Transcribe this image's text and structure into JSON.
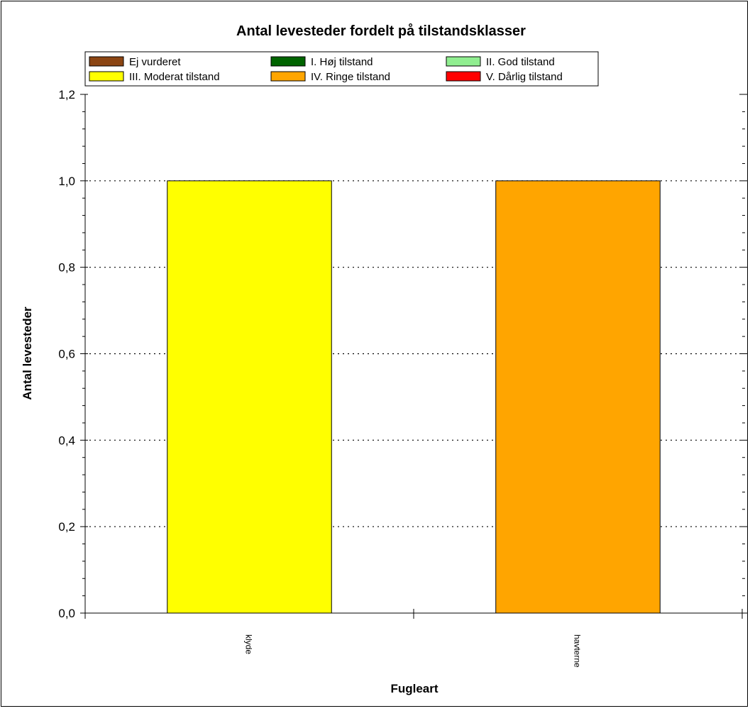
{
  "chart_data": {
    "type": "bar",
    "title": "Antal levesteder fordelt på tilstandsklasser",
    "xlabel": "Fugleart",
    "ylabel": "Antal levesteder",
    "categories": [
      "klyde",
      "havterne"
    ],
    "values": [
      1.0,
      1.0
    ],
    "bar_colors": [
      "#FFFF00",
      "#FFA500"
    ],
    "series": [
      {
        "name": "Ej vurderet",
        "color": "#8B4513",
        "values": [
          0,
          0
        ]
      },
      {
        "name": "I. Høj tilstand",
        "color": "#006400",
        "values": [
          0,
          0
        ]
      },
      {
        "name": "II. God tilstand",
        "color": "#90EE90",
        "values": [
          0,
          0
        ]
      },
      {
        "name": "III. Moderat tilstand",
        "color": "#FFFF00",
        "values": [
          1,
          0
        ]
      },
      {
        "name": "IV. Ringe tilstand",
        "color": "#FFA500",
        "values": [
          0,
          1
        ]
      },
      {
        "name": "V. Dårlig tilstand",
        "color": "#FF0000",
        "values": [
          0,
          0
        ]
      }
    ],
    "ylim": [
      0,
      1.2
    ],
    "yticks": [
      0,
      0.2,
      0.4,
      0.6,
      0.8,
      1.0,
      1.2
    ],
    "ytick_labels": [
      "0,0",
      "0,2",
      "0,4",
      "0,6",
      "0,8",
      "1,0",
      "1,2"
    ],
    "grid": true,
    "legend_position": "top"
  }
}
